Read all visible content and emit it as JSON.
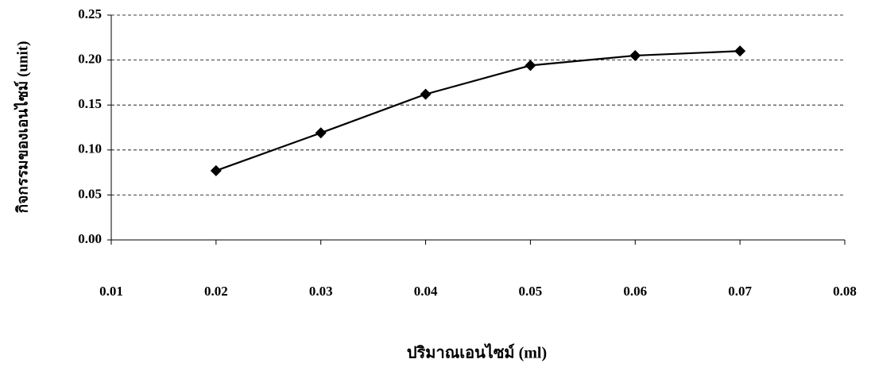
{
  "chart_data": {
    "type": "line",
    "xlabel": "ปริมาณเอนไซม์ (ml)",
    "ylabel": "กิจกรรมของเอนไซม์ (unit)",
    "x": [
      0.02,
      0.03,
      0.04,
      0.05,
      0.06,
      0.07
    ],
    "values": [
      0.077,
      0.119,
      0.162,
      0.194,
      0.205,
      0.21
    ],
    "color": "#000000",
    "xlim": [
      0.01,
      0.08
    ],
    "xticks": [
      0.01,
      0.02,
      0.03,
      0.04,
      0.05,
      0.06,
      0.07,
      0.08
    ],
    "ylim": [
      0,
      0.25
    ],
    "yticks": [
      {
        "value": 0,
        "label": "0.00"
      },
      0.05,
      {
        "value": 0.1,
        "label": "0.10"
      },
      0.15,
      {
        "value": 0.2,
        "label": "0.20"
      },
      0.25
    ],
    "grid": true
  }
}
